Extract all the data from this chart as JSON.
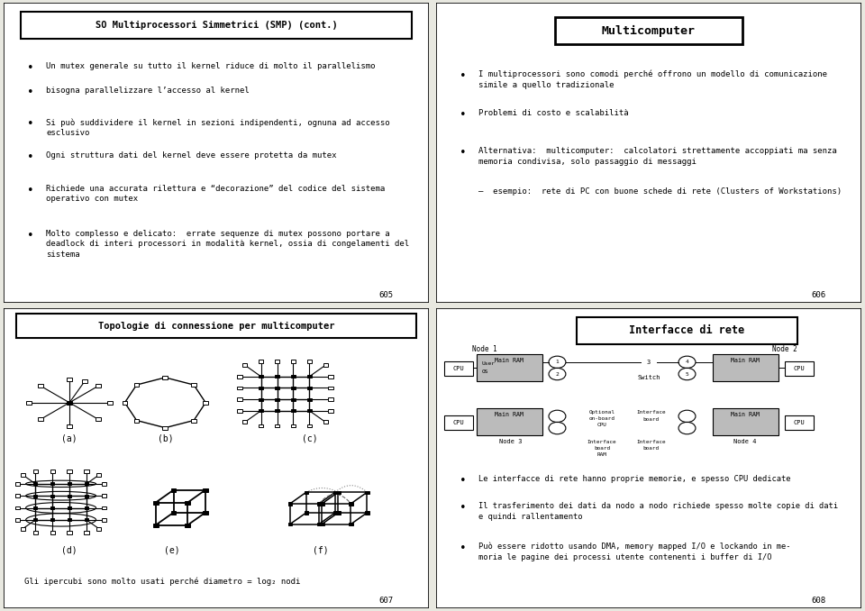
{
  "bg_color": "#e8e8e0",
  "border_color": "#000000",
  "text_color": "#000000",
  "slide1": {
    "title": "SO Multiprocessori Simmetrici (SMP) (cont.)",
    "page": "605",
    "bullets": [
      "Un mutex generale su tutto il kernel riduce di molto il parallelismo",
      "bisogna parallelizzare l’accesso al kernel",
      "Si può suddividere il kernel in sezioni indipendenti, ognuna ad accesso\nesclusivo",
      "Ogni struttura dati del kernel deve essere protetta da mutex",
      "Richiede una accurata rilettura e “decorazione” del codice del sistema\noperativo con mutex",
      "Molto complesso e delicato:  errate sequenze di mutex possono portare a\ndeadlock di interi processori in modalità kernel, ossia di congelamenti del\nsistema"
    ]
  },
  "slide2": {
    "title": "Multicomputer",
    "page": "606",
    "bullets": [
      "I multiprocessori sono comodi perché offrono un modello di comunicazione\nsimile a quello tradizionale",
      "Problemi di costo e scalabilità",
      "Alternativa:  multicomputer:  calcolatori strettamente accoppiati ma senza\nmemoria condivisa, solo passaggio di messaggi",
      "–  esempio:  rete di PC con buone schede di rete (Clusters of Workstations)"
    ]
  },
  "slide3": {
    "title": "Topologie di connessione per multicomputer",
    "page": "607",
    "footer": "Gli ipercubi sono molto usati perché diametro = log₂ nodi"
  },
  "slide4": {
    "title": "Interfacce di rete",
    "page": "608",
    "bullets": [
      "Le interfacce di rete hanno proprie memorie, e spesso CPU dedicate",
      "Il trasferimento dei dati da nodo a nodo richiede spesso molte copie di dati\ne quindi rallentamento",
      "Può essere ridotto usando DMA, memory mapped I/O e lockando in me-\nmoria le pagine dei processi utente contenenti i buffer di I/O"
    ]
  }
}
